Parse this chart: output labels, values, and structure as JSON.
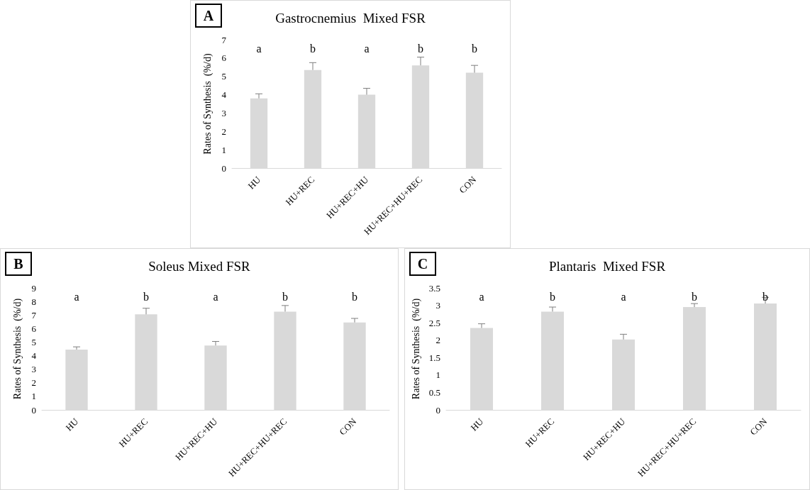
{
  "chart_data": [
    {
      "type": "bar",
      "title": "Gastrocnemius  Mixed FSR",
      "ylabel": "Rates of Synthesis  (%/d)",
      "categories": [
        "HU",
        "HU+REC",
        "HU+REC+HU",
        "HU+REC+HU+REC",
        "CON"
      ],
      "values": [
        3.8,
        5.35,
        4.0,
        5.6,
        5.2
      ],
      "color": "#d9d9d9",
      "errors": [
        [
          3.8,
          4.05
        ],
        [
          5.35,
          5.75
        ],
        [
          4.0,
          4.35
        ],
        [
          5.6,
          6.05
        ],
        [
          5.2,
          5.6
        ]
      ],
      "ylim": [
        0,
        7
      ],
      "yticks": [
        0,
        1,
        2,
        3,
        4,
        5,
        6,
        7
      ],
      "grid": false,
      "annotations": [
        "A",
        "a",
        "b",
        "a",
        "b",
        "b"
      ]
    },
    {
      "type": "bar",
      "title": "Soleus Mixed FSR",
      "ylabel": "Rates of Synthesis  (%/d)",
      "categories": [
        "HU",
        "HU+REC",
        "HU+REC+HU",
        "HU+REC+HU+REC",
        "CON"
      ],
      "values": [
        4.45,
        7.05,
        4.75,
        7.25,
        6.45
      ],
      "color": "#d9d9d9",
      "errors": [
        [
          4.45,
          4.65
        ],
        [
          7.05,
          7.5
        ],
        [
          4.75,
          5.05
        ],
        [
          7.25,
          7.7
        ],
        [
          6.45,
          6.75
        ]
      ],
      "ylim": [
        0,
        9
      ],
      "yticks": [
        0,
        1,
        2,
        3,
        4,
        5,
        6,
        7,
        8,
        9
      ],
      "grid": false,
      "annotations": [
        "B",
        "a",
        "b",
        "a",
        "b",
        "b"
      ]
    },
    {
      "type": "bar",
      "title": "Plantaris  Mixed FSR",
      "ylabel": "Rates of Synthesis  (%/d)",
      "categories": [
        "HU",
        "HU+REC",
        "HU+REC+HU",
        "HU+REC+HU+REC",
        "CON"
      ],
      "values": [
        2.35,
        2.82,
        2.02,
        2.95,
        3.05
      ],
      "color": "#d9d9d9",
      "errors": [
        [
          2.35,
          2.47
        ],
        [
          2.82,
          2.95
        ],
        [
          2.02,
          2.17
        ],
        [
          2.95,
          3.05
        ],
        [
          3.05,
          3.23
        ]
      ],
      "ylim": [
        0,
        3.5
      ],
      "yticks": [
        0,
        0.5,
        1,
        1.5,
        2,
        2.5,
        3,
        3.5
      ],
      "grid": false,
      "annotations": [
        "C",
        "a",
        "b",
        "a",
        "b",
        "b"
      ]
    }
  ]
}
